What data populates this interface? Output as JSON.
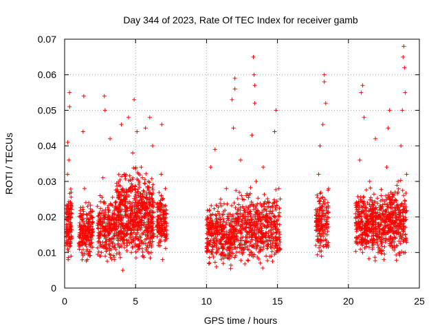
{
  "chart_data": {
    "type": "scatter",
    "title": "Day 344 of 2023, Rate Of TEC Index for receiver gamb",
    "xlabel": "GPS time / hours",
    "ylabel": "ROTI / TECUs",
    "xlim": [
      0,
      25
    ],
    "ylim": [
      0,
      0.07
    ],
    "x_ticks": [
      0,
      5,
      10,
      15,
      20,
      25
    ],
    "x_tick_labels": [
      "0",
      "5",
      "10",
      "15",
      "20",
      "25"
    ],
    "y_ticks": [
      0,
      0.01,
      0.02,
      0.03,
      0.04,
      0.05,
      0.06,
      0.07
    ],
    "y_tick_labels": [
      "0",
      "0.01",
      "0.02",
      "0.03",
      "0.04",
      "0.05",
      "0.06",
      "0.07"
    ],
    "grid": true,
    "marker": "+",
    "color": "#ff0000",
    "series": [
      {
        "name": "ROTI",
        "points": [
          [
            0.1,
            0.012
          ],
          [
            0.15,
            0.022
          ],
          [
            0.2,
            0.032
          ],
          [
            0.22,
            0.041
          ],
          [
            0.25,
            0.008
          ],
          [
            0.3,
            0.036
          ],
          [
            0.35,
            0.055
          ],
          [
            0.35,
            0.051
          ],
          [
            0.4,
            0.018
          ],
          [
            0.45,
            0.009
          ],
          [
            0.5,
            0.014
          ],
          [
            1.1,
            0.02
          ],
          [
            1.2,
            0.01
          ],
          [
            1.3,
            0.044
          ],
          [
            1.35,
            0.054
          ],
          [
            1.4,
            0.028
          ],
          [
            1.5,
            0.015
          ],
          [
            1.6,
            0.008
          ],
          [
            1.7,
            0.024
          ],
          [
            1.8,
            0.012
          ],
          [
            1.9,
            0.02
          ],
          [
            2.0,
            0.016
          ],
          [
            2.4,
            0.014
          ],
          [
            2.5,
            0.026
          ],
          [
            2.6,
            0.01
          ],
          [
            2.7,
            0.031
          ],
          [
            2.8,
            0.054
          ],
          [
            2.85,
            0.05
          ],
          [
            3.0,
            0.02
          ],
          [
            3.1,
            0.012
          ],
          [
            3.2,
            0.042
          ],
          [
            3.3,
            0.018
          ],
          [
            3.5,
            0.008
          ],
          [
            3.6,
            0.024
          ],
          [
            3.8,
            0.015
          ],
          [
            4.0,
            0.046
          ],
          [
            4.1,
            0.005
          ],
          [
            4.2,
            0.032
          ],
          [
            4.3,
            0.022
          ],
          [
            4.4,
            0.012
          ],
          [
            4.5,
            0.048
          ],
          [
            4.6,
            0.028
          ],
          [
            4.7,
            0.01
          ],
          [
            4.8,
            0.038
          ],
          [
            4.9,
            0.053
          ],
          [
            5.0,
            0.018
          ],
          [
            5.1,
            0.044
          ],
          [
            5.2,
            0.026
          ],
          [
            5.3,
            0.012
          ],
          [
            5.4,
            0.034
          ],
          [
            5.5,
            0.009
          ],
          [
            5.6,
            0.02
          ],
          [
            5.7,
            0.045
          ],
          [
            5.8,
            0.015
          ],
          [
            5.9,
            0.03
          ],
          [
            6.0,
            0.048
          ],
          [
            6.1,
            0.01
          ],
          [
            6.2,
            0.04
          ],
          [
            6.6,
            0.012
          ],
          [
            6.7,
            0.022
          ],
          [
            6.8,
            0.032
          ],
          [
            6.85,
            0.046
          ],
          [
            6.9,
            0.008
          ],
          [
            7.0,
            0.018
          ],
          [
            7.1,
            0.028
          ],
          [
            7.2,
            0.014
          ],
          [
            10.1,
            0.012
          ],
          [
            10.2,
            0.022
          ],
          [
            10.3,
            0.034
          ],
          [
            10.4,
            0.01
          ],
          [
            10.5,
            0.018
          ],
          [
            10.6,
            0.039
          ],
          [
            10.7,
            0.006
          ],
          [
            10.8,
            0.015
          ],
          [
            11.0,
            0.025
          ],
          [
            11.2,
            0.011
          ],
          [
            11.4,
            0.028
          ],
          [
            11.6,
            0.018
          ],
          [
            11.8,
            0.053
          ],
          [
            11.9,
            0.045
          ],
          [
            12.0,
            0.013
          ],
          [
            12.0,
            0.059
          ],
          [
            12.0,
            0.056
          ],
          [
            12.2,
            0.022
          ],
          [
            12.4,
            0.036
          ],
          [
            12.6,
            0.01
          ],
          [
            12.8,
            0.026
          ],
          [
            13.0,
            0.016
          ],
          [
            13.2,
            0.043
          ],
          [
            13.3,
            0.065
          ],
          [
            13.35,
            0.06
          ],
          [
            13.4,
            0.057
          ],
          [
            13.4,
            0.052
          ],
          [
            13.5,
            0.03
          ],
          [
            13.6,
            0.012
          ],
          [
            13.8,
            0.02
          ],
          [
            14.0,
            0.034
          ],
          [
            14.2,
            0.009
          ],
          [
            14.4,
            0.024
          ],
          [
            14.6,
            0.014
          ],
          [
            14.8,
            0.044
          ],
          [
            14.9,
            0.05
          ],
          [
            15.0,
            0.018
          ],
          [
            15.1,
            0.028
          ],
          [
            15.2,
            0.011
          ],
          [
            17.7,
            0.012
          ],
          [
            17.8,
            0.022
          ],
          [
            17.9,
            0.032
          ],
          [
            18.0,
            0.04
          ],
          [
            18.1,
            0.009
          ],
          [
            18.2,
            0.046
          ],
          [
            18.3,
            0.06
          ],
          [
            18.3,
            0.058
          ],
          [
            18.4,
            0.052
          ],
          [
            18.5,
            0.018
          ],
          [
            18.6,
            0.028
          ],
          [
            20.6,
            0.014
          ],
          [
            20.7,
            0.024
          ],
          [
            20.8,
            0.036
          ],
          [
            20.9,
            0.055
          ],
          [
            21.0,
            0.057
          ],
          [
            21.0,
            0.01
          ],
          [
            21.1,
            0.048
          ],
          [
            21.3,
            0.02
          ],
          [
            21.5,
            0.03
          ],
          [
            21.7,
            0.012
          ],
          [
            21.9,
            0.042
          ],
          [
            22.1,
            0.018
          ],
          [
            22.3,
            0.026
          ],
          [
            22.5,
            0.008
          ],
          [
            22.7,
            0.034
          ],
          [
            22.8,
            0.045
          ],
          [
            22.9,
            0.05
          ],
          [
            23.0,
            0.016
          ],
          [
            23.2,
            0.024
          ],
          [
            23.4,
            0.012
          ],
          [
            23.5,
            0.03
          ],
          [
            23.6,
            0.022
          ],
          [
            23.7,
            0.04
          ],
          [
            23.8,
            0.05
          ],
          [
            23.85,
            0.065
          ],
          [
            23.9,
            0.068
          ],
          [
            23.95,
            0.062
          ],
          [
            24.0,
            0.055
          ],
          [
            24.0,
            0.01
          ],
          [
            24.1,
            0.032
          ]
        ],
        "clusters": [
          {
            "x_range": [
              0.1,
              0.5
            ],
            "y_band": [
              0.006,
              0.03
            ],
            "n": 110
          },
          {
            "x_range": [
              1.0,
              2.0
            ],
            "y_band": [
              0.006,
              0.026
            ],
            "n": 200
          },
          {
            "x_range": [
              2.3,
              3.6
            ],
            "y_band": [
              0.006,
              0.028
            ],
            "n": 220
          },
          {
            "x_range": [
              3.6,
              6.3
            ],
            "y_band": [
              0.004,
              0.036
            ],
            "n": 650
          },
          {
            "x_range": [
              6.5,
              7.2
            ],
            "y_band": [
              0.008,
              0.03
            ],
            "n": 140
          },
          {
            "x_range": [
              10.0,
              12.0
            ],
            "y_band": [
              0.004,
              0.026
            ],
            "n": 350
          },
          {
            "x_range": [
              12.0,
              15.2
            ],
            "y_band": [
              0.004,
              0.03
            ],
            "n": 500
          },
          {
            "x_range": [
              17.7,
              18.6
            ],
            "y_band": [
              0.007,
              0.03
            ],
            "n": 160
          },
          {
            "x_range": [
              20.5,
              22.6
            ],
            "y_band": [
              0.006,
              0.03
            ],
            "n": 420
          },
          {
            "x_range": [
              22.6,
              24.1
            ],
            "y_band": [
              0.006,
              0.032
            ],
            "n": 280
          }
        ]
      }
    ]
  }
}
